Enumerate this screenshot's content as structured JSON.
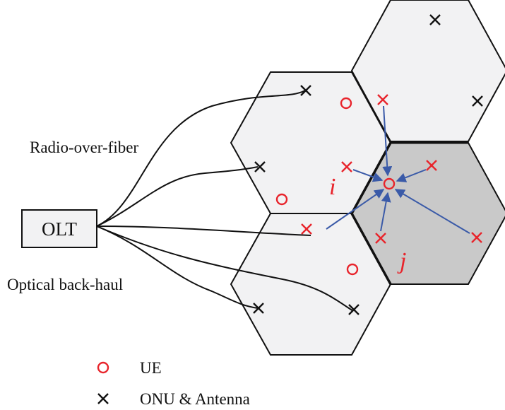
{
  "labels": {
    "rof": "Radio-over-fiber",
    "olt": "OLT",
    "backhaul": "Optical back-haul",
    "cell_i": "i",
    "cell_j": "j"
  },
  "legend": [
    {
      "marker": "ue",
      "label": "UE"
    },
    {
      "marker": "onu",
      "label": "ONU & Antenna"
    }
  ],
  "colors": {
    "marker_red": "#e8242b",
    "arrow_blue": "#3a5aa8",
    "hex_light": "#f2f2f3",
    "hex_shaded": "#c9c9c9",
    "stroke": "#111111"
  }
}
